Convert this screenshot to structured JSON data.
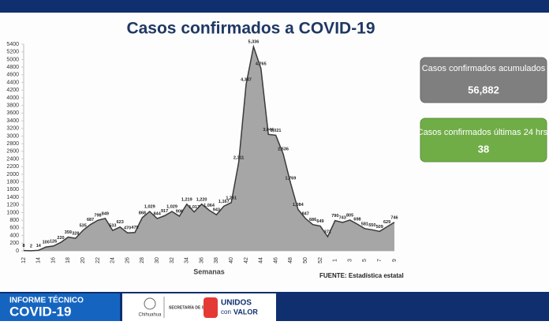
{
  "chart_data": {
    "type": "area",
    "title": "Casos confirmados a COVID-19",
    "x_label": "Semanas",
    "source": "FUENTE: Estadística estatal",
    "categories": [
      "12",
      null,
      "14",
      null,
      "16",
      null,
      "18",
      null,
      "20",
      null,
      "22",
      null,
      "24",
      null,
      "26",
      null,
      "28",
      null,
      "30",
      null,
      "32",
      null,
      "34",
      null,
      "36",
      null,
      "38",
      null,
      "40",
      null,
      "42",
      null,
      "44",
      null,
      "46",
      null,
      "48",
      null,
      "50",
      null,
      "52",
      null,
      "1",
      null,
      "3",
      null,
      "5",
      null,
      "7",
      null,
      "9"
    ],
    "values": [
      8,
      2,
      14,
      100,
      126,
      220,
      359,
      328,
      535,
      687,
      798,
      849,
      533,
      623,
      470,
      479,
      868,
      1029,
      844,
      917,
      1029,
      906,
      1219,
      1017,
      1220,
      1064,
      943,
      1167,
      1261,
      2311,
      4347,
      5336,
      4765,
      3044,
      3021,
      2536,
      1769,
      1084,
      847,
      686,
      649,
      371,
      790,
      743,
      805,
      698,
      581,
      550,
      509,
      629,
      746
    ],
    "value_labels": [
      "8",
      "2",
      "14",
      "100",
      "126",
      "220",
      "359",
      "328",
      "535",
      "687",
      "798",
      "849",
      "533",
      "623",
      "470",
      "479",
      "868",
      "1,029",
      "844",
      "917",
      "1,029",
      "906",
      "1,219",
      "1,017",
      "1,220",
      "1,064",
      "943",
      "1,167",
      "1,261",
      "2,311",
      "4,347",
      "5,336",
      "4,765",
      "3,044",
      "3,021",
      "2,536",
      "1,769",
      "1,084",
      "847",
      "686",
      "649",
      "371",
      "790",
      "743",
      "805",
      "698",
      "581",
      "550",
      "509",
      "629",
      "746"
    ],
    "color": "#a6a6a6",
    "line_color": "#3a3a3a",
    "ylim": [
      0,
      5400
    ],
    "yticks": [
      0,
      200,
      400,
      600,
      800,
      1000,
      1200,
      1400,
      1600,
      1800,
      2000,
      2200,
      2400,
      2600,
      2800,
      3000,
      3200,
      3400,
      3600,
      3800,
      4000,
      4200,
      4400,
      4600,
      4800,
      5000,
      5200,
      5400
    ],
    "grid": false
  },
  "summary": [
    {
      "label": "Casos confirmados acumulados",
      "value": "56,882"
    },
    {
      "label": "Casos confirmados últimas 24 hrs.",
      "value": "38"
    }
  ],
  "footer": {
    "report_line1": "INFORME TÉCNICO",
    "report_line2": "COVID-19",
    "logo1": "Chihuahua",
    "logo2": "SECRETARÍA DE SALUD",
    "slogan1": "UNIDOS",
    "slogan2a": "con",
    "slogan2b": "VALOR"
  }
}
